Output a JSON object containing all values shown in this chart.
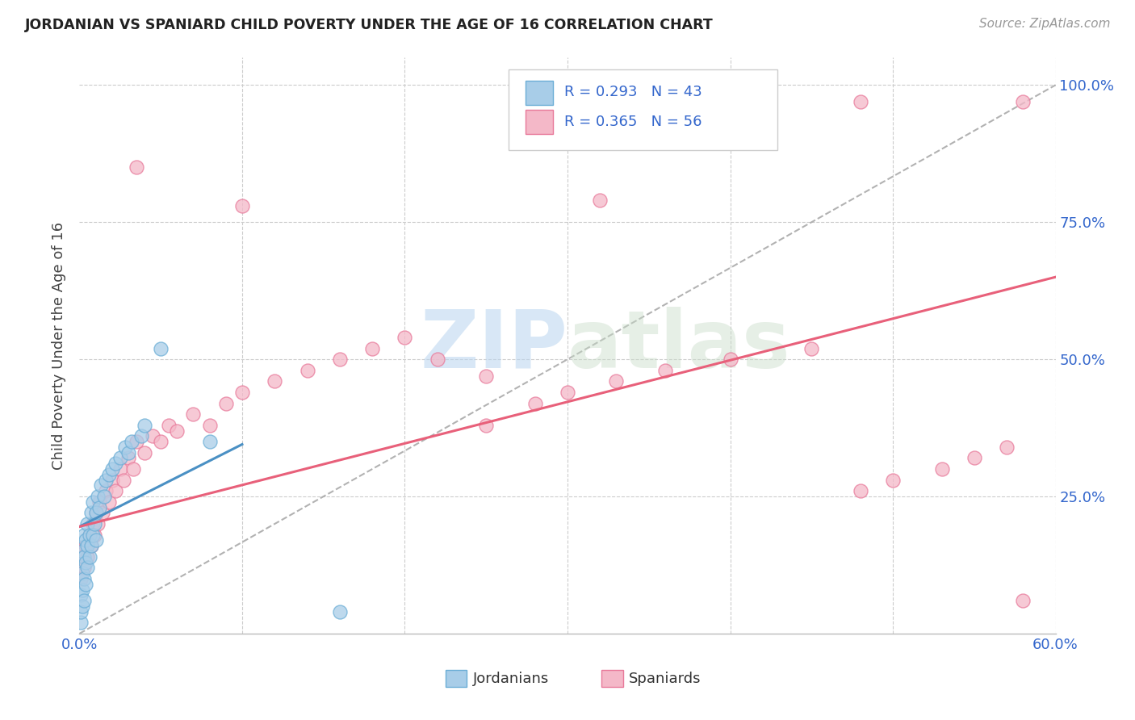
{
  "title": "JORDANIAN VS SPANIARD CHILD POVERTY UNDER THE AGE OF 16 CORRELATION CHART",
  "source": "Source: ZipAtlas.com",
  "ylabel_label": "Child Poverty Under the Age of 16",
  "xlim": [
    0.0,
    0.6
  ],
  "ylim": [
    0.0,
    1.05
  ],
  "watermark": "ZIPatlas",
  "legend_label1": "Jordanians",
  "legend_label2": "Spaniards",
  "R1": "0.293",
  "N1": "43",
  "R2": "0.365",
  "N2": "56",
  "color_blue": "#a8cde8",
  "color_pink": "#f4b8c8",
  "color_blue_edge": "#6baed6",
  "color_pink_edge": "#e8799a",
  "color_blue_line": "#4a90c4",
  "color_pink_line": "#e8607a",
  "color_legend_text": "#3366cc",
  "background_color": "#ffffff",
  "grid_color": "#cccccc",
  "jord_x": [
    0.001,
    0.001,
    0.001,
    0.002,
    0.002,
    0.002,
    0.002,
    0.003,
    0.003,
    0.003,
    0.003,
    0.004,
    0.004,
    0.004,
    0.005,
    0.005,
    0.005,
    0.006,
    0.006,
    0.007,
    0.007,
    0.008,
    0.008,
    0.009,
    0.01,
    0.01,
    0.011,
    0.012,
    0.013,
    0.015,
    0.016,
    0.018,
    0.02,
    0.022,
    0.025,
    0.028,
    0.03,
    0.032,
    0.038,
    0.04,
    0.05,
    0.08,
    0.16
  ],
  "jord_y": [
    0.02,
    0.04,
    0.07,
    0.05,
    0.08,
    0.11,
    0.15,
    0.06,
    0.1,
    0.14,
    0.18,
    0.09,
    0.13,
    0.17,
    0.12,
    0.16,
    0.2,
    0.14,
    0.18,
    0.16,
    0.22,
    0.18,
    0.24,
    0.2,
    0.17,
    0.22,
    0.25,
    0.23,
    0.27,
    0.25,
    0.28,
    0.29,
    0.3,
    0.31,
    0.32,
    0.34,
    0.33,
    0.35,
    0.36,
    0.38,
    0.52,
    0.35,
    0.04
  ],
  "span_x": [
    0.001,
    0.002,
    0.003,
    0.004,
    0.005,
    0.006,
    0.007,
    0.008,
    0.009,
    0.01,
    0.011,
    0.012,
    0.014,
    0.016,
    0.018,
    0.02,
    0.022,
    0.025,
    0.027,
    0.03,
    0.033,
    0.035,
    0.04,
    0.045,
    0.05,
    0.055,
    0.06,
    0.07,
    0.08,
    0.09,
    0.1,
    0.12,
    0.14,
    0.16,
    0.18,
    0.2,
    0.22,
    0.25,
    0.28,
    0.3,
    0.33,
    0.36,
    0.4,
    0.45,
    0.48,
    0.5,
    0.53,
    0.55,
    0.57,
    0.58,
    0.035,
    0.1,
    0.25,
    0.32,
    0.48,
    0.58
  ],
  "span_y": [
    0.1,
    0.14,
    0.12,
    0.16,
    0.14,
    0.18,
    0.16,
    0.2,
    0.18,
    0.22,
    0.2,
    0.24,
    0.22,
    0.26,
    0.24,
    0.28,
    0.26,
    0.3,
    0.28,
    0.32,
    0.3,
    0.35,
    0.33,
    0.36,
    0.35,
    0.38,
    0.37,
    0.4,
    0.38,
    0.42,
    0.44,
    0.46,
    0.48,
    0.5,
    0.52,
    0.54,
    0.5,
    0.38,
    0.42,
    0.44,
    0.46,
    0.48,
    0.5,
    0.52,
    0.26,
    0.28,
    0.3,
    0.32,
    0.34,
    0.06,
    0.85,
    0.78,
    0.47,
    0.79,
    0.97,
    0.97
  ]
}
